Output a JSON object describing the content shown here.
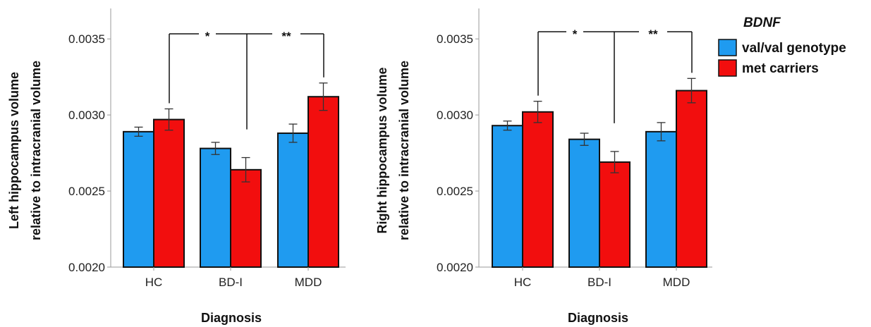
{
  "chart_data": [
    {
      "type": "bar",
      "categories": [
        "HC",
        "BD-I",
        "MDD"
      ],
      "xlabel": "Diagnosis",
      "ylabel": [
        "Left hippocampus volume",
        "relative to intracranial volume"
      ],
      "ylim": [
        0.002,
        0.0037
      ],
      "yticks": [
        "0.0020",
        "0.0025",
        "0.0030",
        "0.0035"
      ],
      "series": [
        {
          "name": "val/val genotype",
          "values": [
            0.00289,
            0.00278,
            0.00288
          ],
          "error": [
            3e-05,
            4e-05,
            6e-05
          ]
        },
        {
          "name": "met carriers",
          "values": [
            0.00297,
            0.00264,
            0.00312
          ],
          "error": [
            7e-05,
            8e-05,
            9e-05
          ]
        }
      ],
      "annotations": [
        "*",
        "**"
      ]
    },
    {
      "type": "bar",
      "categories": [
        "HC",
        "BD-I",
        "MDD"
      ],
      "xlabel": "Diagnosis",
      "ylabel": [
        "Right hippocampus volume",
        "relative to intracranial volume"
      ],
      "ylim": [
        0.002,
        0.0037
      ],
      "yticks": [
        "0.0020",
        "0.0025",
        "0.0030",
        "0.0035"
      ],
      "series": [
        {
          "name": "val/val genotype",
          "values": [
            0.00293,
            0.00284,
            0.00289
          ],
          "error": [
            3e-05,
            4e-05,
            6e-05
          ]
        },
        {
          "name": "met carriers",
          "values": [
            0.00302,
            0.00269,
            0.00316
          ],
          "error": [
            7e-05,
            7e-05,
            8e-05
          ]
        }
      ],
      "annotations": [
        "*",
        "**"
      ]
    }
  ],
  "legend": {
    "title": "BDNF",
    "items": [
      {
        "label": "val/val genotype",
        "color": "#1f9bf0"
      },
      {
        "label": "met carriers",
        "color": "#f20e0e"
      }
    ]
  }
}
